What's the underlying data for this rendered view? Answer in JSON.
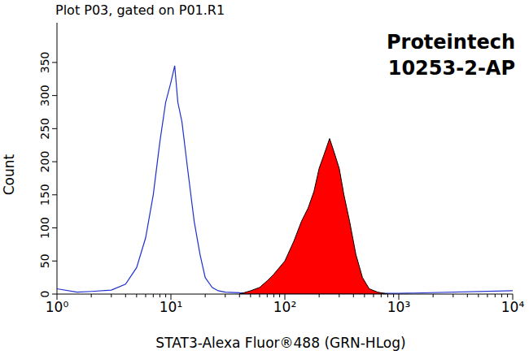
{
  "chart_data": {
    "type": "histogram_overlay",
    "title": "Plot P03, gated on P01.R1",
    "annotations": [
      "Proteintech",
      "10253-2-AP"
    ],
    "x_label": "STAT3-Alexa Fluor®488 (GRN-HLog)",
    "y_label": "Count",
    "log": "x",
    "xlim": [
      1,
      10000
    ],
    "xticks": [
      {
        "value": 1,
        "label": "10⁰"
      },
      {
        "value": 10,
        "label": "10¹"
      },
      {
        "value": 100,
        "label": "10²"
      },
      {
        "value": 1000,
        "label": "10³"
      },
      {
        "value": 10000,
        "label": "10⁴"
      }
    ],
    "ylim": [
      0,
      410
    ],
    "yticks": [
      0,
      50,
      100,
      150,
      200,
      250,
      300,
      350
    ],
    "series": [
      {
        "type": "line",
        "color": "#1f2fd0",
        "x": [
          1,
          1.5,
          2,
          3,
          4,
          5,
          6,
          7,
          8,
          9,
          10,
          10.8,
          11.5,
          12.5,
          14,
          16,
          18,
          20,
          23,
          26,
          30,
          40,
          100,
          1000,
          10000
        ],
        "values": [
          8,
          3,
          4,
          6,
          15,
          40,
          85,
          150,
          230,
          290,
          320,
          345,
          290,
          260,
          190,
          110,
          60,
          25,
          10,
          5,
          3,
          2,
          1,
          1,
          5
        ]
      },
      {
        "type": "area",
        "color": "#ff0000",
        "x": [
          40,
          50,
          60,
          70,
          80,
          100,
          120,
          140,
          160,
          180,
          200,
          220,
          247,
          270,
          300,
          330,
          370,
          420,
          480,
          550,
          650,
          800
        ],
        "values": [
          0,
          5,
          10,
          20,
          30,
          50,
          80,
          110,
          130,
          155,
          190,
          210,
          235,
          215,
          190,
          150,
          110,
          60,
          25,
          8,
          3,
          0
        ]
      }
    ]
  }
}
